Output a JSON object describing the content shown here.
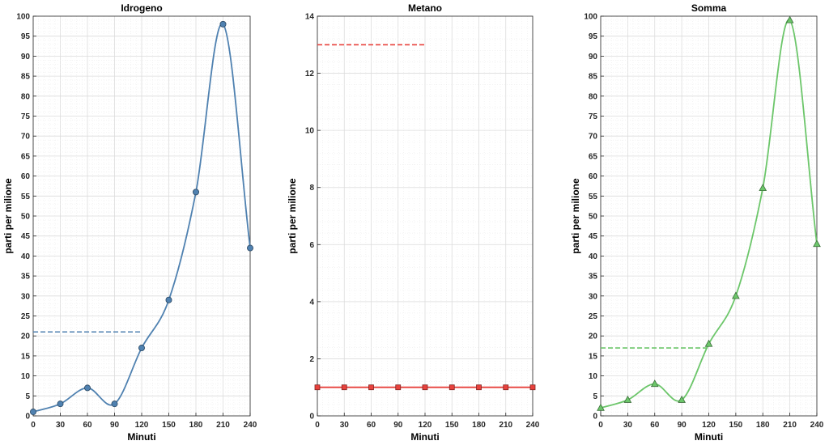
{
  "chart_data": [
    {
      "type": "line",
      "title": "Idrogeno",
      "xlabel": "Minuti",
      "ylabel": "parti per milione",
      "x": [
        0,
        30,
        60,
        90,
        120,
        150,
        180,
        210,
        240
      ],
      "xticks": [
        0,
        30,
        60,
        90,
        120,
        150,
        180,
        210,
        240
      ],
      "xlim": [
        0,
        240
      ],
      "ylim": [
        0,
        100
      ],
      "yticks": [
        0,
        5,
        10,
        15,
        20,
        25,
        30,
        35,
        40,
        45,
        50,
        55,
        60,
        65,
        70,
        75,
        80,
        85,
        90,
        95,
        100
      ],
      "series": [
        {
          "name": "Idrogeno",
          "values": [
            1,
            3,
            7,
            3,
            17,
            29,
            56,
            98,
            42
          ],
          "color": "#4f81b0",
          "marker": "circle"
        }
      ],
      "reference_line": {
        "value": 21,
        "x_from": 0,
        "x_to": 120,
        "color": "#4f81b0",
        "style": "dashed"
      },
      "grid": true
    },
    {
      "type": "line",
      "title": "Metano",
      "xlabel": "Minuti",
      "ylabel": "parti per milione",
      "x": [
        0,
        30,
        60,
        90,
        120,
        150,
        180,
        210,
        240
      ],
      "xticks": [
        0,
        30,
        60,
        90,
        120,
        150,
        180,
        210,
        240
      ],
      "xlim": [
        0,
        240
      ],
      "ylim": [
        0,
        14
      ],
      "yticks": [
        0,
        2,
        4,
        6,
        8,
        10,
        12,
        14
      ],
      "series": [
        {
          "name": "Metano",
          "values": [
            1,
            1,
            1,
            1,
            1,
            1,
            1,
            1,
            1
          ],
          "color": "#e8413c",
          "marker": "square"
        }
      ],
      "reference_line": {
        "value": 13,
        "x_from": 0,
        "x_to": 120,
        "color": "#e8413c",
        "style": "dashed"
      },
      "grid": true
    },
    {
      "type": "line",
      "title": "Somma",
      "xlabel": "Minuti",
      "ylabel": "parti per milione",
      "x": [
        0,
        30,
        60,
        90,
        120,
        150,
        180,
        210,
        240
      ],
      "xticks": [
        0,
        30,
        60,
        90,
        120,
        150,
        180,
        210,
        240
      ],
      "xlim": [
        0,
        240
      ],
      "ylim": [
        0,
        100
      ],
      "yticks": [
        0,
        5,
        10,
        15,
        20,
        25,
        30,
        35,
        40,
        45,
        50,
        55,
        60,
        65,
        70,
        75,
        80,
        85,
        90,
        95,
        100
      ],
      "series": [
        {
          "name": "Somma",
          "values": [
            2,
            4,
            8,
            4,
            18,
            30,
            57,
            99,
            43
          ],
          "color": "#6cc66a",
          "marker": "triangle"
        }
      ],
      "reference_line": {
        "value": 17,
        "x_from": 0,
        "x_to": 120,
        "color": "#6cc66a",
        "style": "dashed"
      },
      "grid": true
    }
  ]
}
